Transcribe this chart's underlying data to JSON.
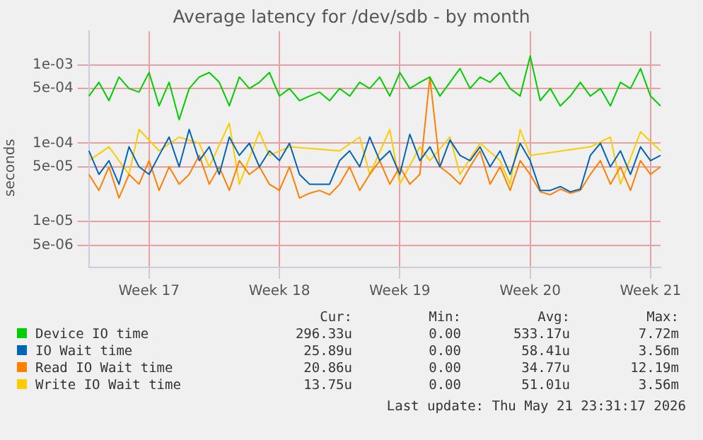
{
  "chart_data": {
    "type": "line",
    "title": "Average latency for /dev/sdb - by month",
    "ylabel": "seconds",
    "log": "y",
    "grid": true,
    "legend": "bottom",
    "marker": "none",
    "line_style": "solid",
    "categories": [
      null,
      null,
      null,
      null,
      null,
      null,
      "Week 17",
      null,
      null,
      null,
      null,
      null,
      null,
      null,
      null,
      null,
      null,
      null,
      null,
      "Week 18",
      null,
      null,
      null,
      null,
      null,
      null,
      null,
      null,
      null,
      null,
      null,
      "Week 19",
      null,
      null,
      null,
      null,
      null,
      null,
      null,
      null,
      null,
      null,
      null,
      null,
      "Week 20",
      null,
      null,
      null,
      null,
      null,
      null,
      null,
      null,
      null,
      null,
      null,
      "Week 21",
      null
    ],
    "ylim": [
      2.6e-06,
      0.0027
    ],
    "yticks": [
      {
        "value": 5e-06,
        "label": "5e-06"
      },
      {
        "value": 1e-05,
        "label": "1e-05"
      },
      {
        "value": 5e-05,
        "label": "5e-05"
      },
      {
        "value": 0.0001,
        "label": "1e-04"
      },
      {
        "value": 0.0005,
        "label": "5e-04"
      },
      {
        "value": 0.001,
        "label": "1e-03"
      }
    ],
    "series": [
      {
        "name": "Device IO time",
        "color": "#00cc00",
        "values": [
          0.0004,
          0.0006,
          0.00035,
          0.0007,
          0.0005,
          0.00045,
          0.0008,
          0.0003,
          0.0006,
          0.0002,
          0.0005,
          0.0007,
          0.0008,
          0.0006,
          0.0003,
          0.0007,
          0.0005,
          0.0006,
          0.0008,
          0.0004,
          0.0005,
          0.00035,
          0.0004,
          0.00045,
          0.00035,
          0.0005,
          0.0004,
          0.0006,
          0.0005,
          0.0007,
          0.0004,
          0.0008,
          0.0005,
          0.0006,
          0.0007,
          0.0004,
          0.0006,
          0.0009,
          0.0005,
          0.0007,
          0.0006,
          0.0008,
          0.0005,
          0.0004,
          0.0013,
          0.00035,
          0.0005,
          0.0003,
          0.0004,
          0.0006,
          0.0004,
          0.0005,
          0.0003,
          0.0006,
          0.0005,
          0.0009,
          0.0004,
          0.0003
        ]
      },
      {
        "name": "IO Wait time",
        "color": "#0066b3",
        "values": [
          8e-05,
          4e-05,
          6e-05,
          3e-05,
          9e-05,
          5e-05,
          4e-05,
          7e-05,
          0.00012,
          5e-05,
          0.00015,
          6e-05,
          9e-05,
          4e-05,
          0.00012,
          7e-05,
          0.0001,
          5e-05,
          8e-05,
          6e-05,
          0.0001,
          4e-05,
          3e-05,
          3e-05,
          3e-05,
          6e-05,
          8e-05,
          5e-05,
          0.00012,
          6e-05,
          8e-05,
          4e-05,
          0.00013,
          6e-05,
          9e-05,
          5e-05,
          0.00011,
          7e-05,
          6e-05,
          9e-05,
          5e-05,
          8e-05,
          4e-05,
          0.0001,
          6e-05,
          2.5e-05,
          2.5e-05,
          2.8e-05,
          2.4e-05,
          2.6e-05,
          7e-05,
          0.0001,
          5e-05,
          8e-05,
          4e-05,
          9e-05,
          6e-05,
          7e-05
        ]
      },
      {
        "name": "Read IO Wait time",
        "color": "#ff8000",
        "values": [
          4e-05,
          2.5e-05,
          5e-05,
          2e-05,
          4e-05,
          3e-05,
          6e-05,
          2.5e-05,
          5e-05,
          3e-05,
          4e-05,
          7e-05,
          3e-05,
          5e-05,
          2.5e-05,
          6e-05,
          4e-05,
          5e-05,
          3e-05,
          2.5e-05,
          5e-05,
          2e-05,
          2.3e-05,
          2.5e-05,
          2.2e-05,
          3e-05,
          5e-05,
          2.5e-05,
          4e-05,
          6e-05,
          3e-05,
          5e-05,
          3e-05,
          4e-05,
          0.0007,
          5e-05,
          4e-05,
          3e-05,
          5e-05,
          8e-05,
          3e-05,
          5e-05,
          2.5e-05,
          6e-05,
          4e-05,
          2.4e-05,
          2.2e-05,
          2.6e-05,
          2.3e-05,
          2.5e-05,
          4e-05,
          6e-05,
          3e-05,
          5e-05,
          2.5e-05,
          6e-05,
          4e-05,
          5e-05
        ]
      },
      {
        "name": "Write IO Wait time",
        "color": "#ffcc00",
        "values": [
          6e-05,
          null,
          9e-05,
          null,
          4e-05,
          0.00015,
          null,
          8e-05,
          null,
          0.00012,
          null,
          0.0001,
          5e-05,
          null,
          0.00018,
          3e-05,
          null,
          0.00014,
          7e-05,
          null,
          9e-05,
          null,
          null,
          null,
          null,
          8e-05,
          null,
          0.00012,
          4e-05,
          null,
          0.00015,
          3e-05,
          null,
          9e-05,
          6e-05,
          null,
          0.00012,
          4e-05,
          null,
          0.0001,
          null,
          6e-05,
          3e-05,
          0.00015,
          7e-05,
          null,
          null,
          null,
          null,
          null,
          9e-05,
          null,
          0.00012,
          3e-05,
          null,
          0.00014,
          null,
          8e-05
        ]
      }
    ],
    "annotations": [
      "Cur:",
      "Min:",
      "Avg:",
      "Max:",
      "296.33u",
      "0.00",
      "533.17u",
      "7.72m",
      "25.89u",
      "0.00",
      "58.41u",
      "3.56m",
      "20.86u",
      "0.00",
      "34.77u",
      "12.19m",
      "13.75u",
      "0.00",
      "51.01u",
      "3.56m",
      "Last update: Thu May 21 23:31:17 2026"
    ]
  }
}
